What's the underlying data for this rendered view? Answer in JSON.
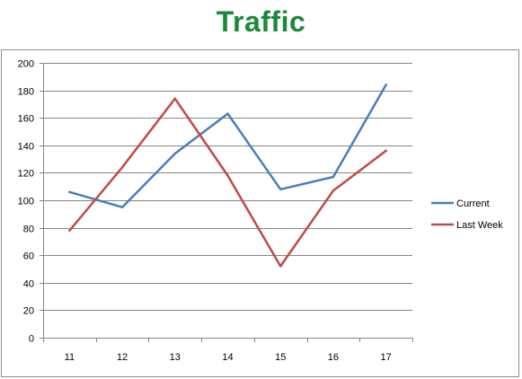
{
  "chart_data": {
    "type": "line",
    "title": "Traffic",
    "xlabel": "",
    "ylabel": "",
    "categories": [
      "11",
      "12",
      "13",
      "14",
      "15",
      "16",
      "17"
    ],
    "ylim": [
      0,
      200
    ],
    "yticks": [
      0,
      20,
      40,
      60,
      80,
      100,
      120,
      140,
      160,
      180,
      200
    ],
    "grid": true,
    "legend_position": "right",
    "series": [
      {
        "name": "Current",
        "color": "#4a7ebb",
        "values": [
          106,
          95,
          134,
          163,
          108,
          117,
          184
        ]
      },
      {
        "name": "Last Week",
        "color": "#be4b48",
        "values": [
          78,
          124,
          174,
          118,
          52,
          107,
          136
        ]
      }
    ],
    "colors": {
      "title": "#1a8a3a",
      "grid": "#868686",
      "axis": "#868686"
    }
  }
}
